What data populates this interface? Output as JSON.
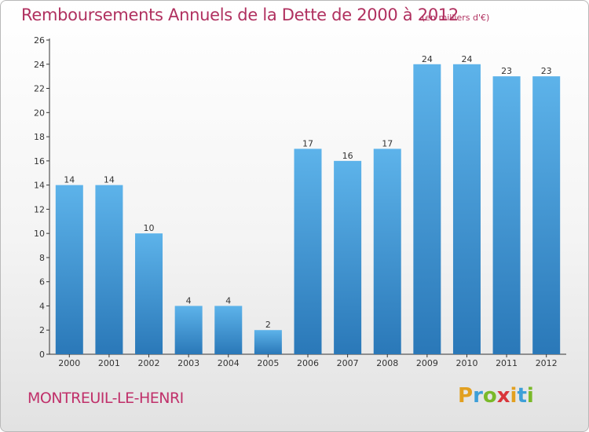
{
  "header": {
    "title": "Remboursements Annuels de la Dette de 2000 à 2012",
    "subtitle": "(en milliers d'€)"
  },
  "footer": {
    "commune": "MONTREUIL-LE-HENRI",
    "brand": "Proxiti"
  },
  "brand_letters": [
    {
      "char": "P",
      "color": "#e2a020"
    },
    {
      "char": "r",
      "color": "#3d9fd8"
    },
    {
      "char": "o",
      "color": "#7ab929"
    },
    {
      "char": "x",
      "color": "#d9363b"
    },
    {
      "char": "i",
      "color": "#e2a020"
    },
    {
      "char": "t",
      "color": "#3d9fd8"
    },
    {
      "char": "i",
      "color": "#7ab929"
    }
  ],
  "colors": {
    "bar_top": "#5db3ea",
    "bar_bottom": "#2a78b8",
    "title": "#b0305f"
  },
  "chart_data": {
    "type": "bar",
    "title": "Remboursements Annuels de la Dette de 2000 à 2012",
    "subtitle": "(en milliers d'€)",
    "xlabel": "",
    "ylabel": "",
    "categories": [
      "2000",
      "2001",
      "2002",
      "2003",
      "2004",
      "2005",
      "2006",
      "2007",
      "2008",
      "2009",
      "2010",
      "2011",
      "2012"
    ],
    "values": [
      14,
      14,
      10,
      4,
      4,
      2,
      17,
      16,
      17,
      24,
      24,
      23,
      23
    ],
    "ylim": [
      0,
      26
    ],
    "yticks": [
      0,
      2,
      4,
      6,
      8,
      10,
      12,
      14,
      16,
      18,
      20,
      22,
      24,
      26
    ],
    "grid": false,
    "legend": "none",
    "data_labels": true
  }
}
